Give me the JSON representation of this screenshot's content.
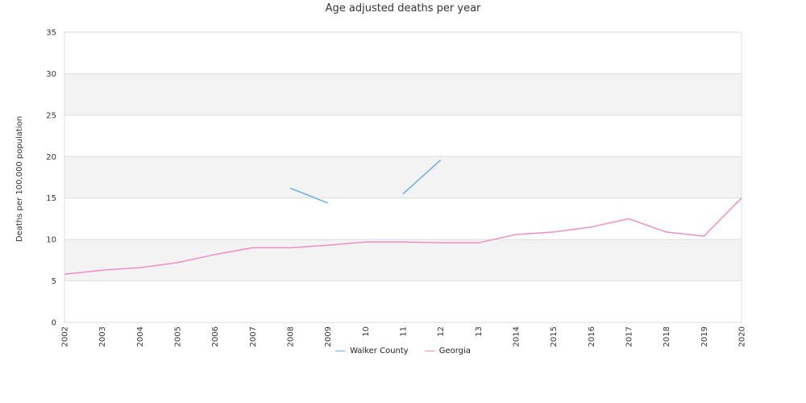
{
  "colors": {
    "walker": "#6aaee8",
    "georgia": "#f08ec4",
    "band": "#f3f3f3",
    "grid": "#dddddd"
  },
  "chart_data": {
    "type": "line",
    "title": "Age adjusted deaths per year",
    "xlabel": "",
    "ylabel": "Deaths per 100,000 population",
    "ylim": [
      0,
      35
    ],
    "yticks": [
      0,
      5,
      10,
      15,
      20,
      25,
      30,
      35
    ],
    "x": [
      "2002",
      "2003",
      "2004",
      "2005",
      "2006",
      "2007",
      "2008",
      "2009",
      "2010",
      "2011",
      "2012",
      "2013",
      "2014",
      "2015",
      "2016",
      "2017",
      "2018",
      "2019",
      "2020"
    ],
    "xtick_labels": [
      "2002",
      "2003",
      "2004",
      "2005",
      "2006",
      "2007",
      "2008",
      "2009",
      "10",
      "11",
      "12",
      "13",
      "2014",
      "2015",
      "2016",
      "2017",
      "2018",
      "2019",
      "2020"
    ],
    "grid": true,
    "legend_position": "bottom",
    "series": [
      {
        "name": "Walker County",
        "color": "#6aaee8",
        "values": [
          null,
          null,
          null,
          null,
          null,
          null,
          16.2,
          14.4,
          null,
          15.5,
          19.6,
          null,
          null,
          null,
          null,
          null,
          null,
          null,
          null
        ]
      },
      {
        "name": "Georgia",
        "color": "#f08ec4",
        "values": [
          5.8,
          6.3,
          6.6,
          7.2,
          8.2,
          9.0,
          9.0,
          9.3,
          9.7,
          9.7,
          9.6,
          9.6,
          10.6,
          10.9,
          11.5,
          12.5,
          10.9,
          10.4,
          15.0
        ]
      }
    ]
  }
}
